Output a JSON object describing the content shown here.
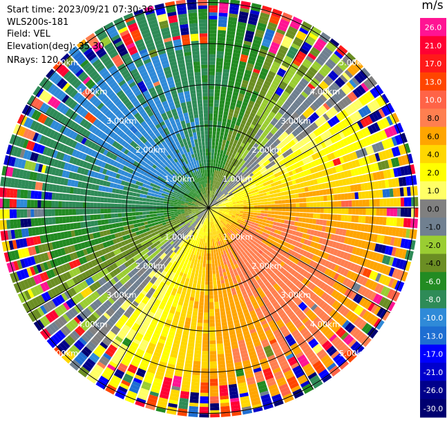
{
  "header": {
    "start_time": "Start time: 2023/09/21 07:30:36",
    "instrument": "WLS200s-181",
    "field": "Field: VEL",
    "elevation": "Elevation(deg): 35.30",
    "nrays": "NRays: 120"
  },
  "colorbar": {
    "unit": "m/s",
    "tick_labels": [
      "26.0",
      "21.0",
      "17.0",
      "13.0",
      "10.0",
      "8.0",
      "6.0",
      "4.0",
      "2.0",
      "1.0",
      "0.0",
      "-1.0",
      "-2.0",
      "-4.0",
      "-6.0",
      "-8.0",
      "-10.0",
      "-13.0",
      "-17.0",
      "-21.0",
      "-26.0",
      "-30.0"
    ],
    "bins": [
      {
        "from": -30,
        "to": -26,
        "color": "#000070"
      },
      {
        "from": -26,
        "to": -21,
        "color": "#00008b"
      },
      {
        "from": -21,
        "to": -17,
        "color": "#0000cd"
      },
      {
        "from": -17,
        "to": -13,
        "color": "#0000ff"
      },
      {
        "from": -13,
        "to": -10,
        "color": "#1e6ed2"
      },
      {
        "from": -10,
        "to": -8,
        "color": "#2f8ad8"
      },
      {
        "from": -8,
        "to": -6,
        "color": "#2e8b57"
      },
      {
        "from": -6,
        "to": -4,
        "color": "#228b22"
      },
      {
        "from": -4,
        "to": -2,
        "color": "#6b8e23"
      },
      {
        "from": -2,
        "to": -1,
        "color": "#9acd32"
      },
      {
        "from": -1,
        "to": 0,
        "color": "#708090"
      },
      {
        "from": 0,
        "to": 1,
        "color": "#808080"
      },
      {
        "from": 1,
        "to": 2,
        "color": "#ffff66"
      },
      {
        "from": 2,
        "to": 4,
        "color": "#ffff00"
      },
      {
        "from": 4,
        "to": 6,
        "color": "#ffd700"
      },
      {
        "from": 6,
        "to": 8,
        "color": "#ffa500"
      },
      {
        "from": 8,
        "to": 10,
        "color": "#ff7f50"
      },
      {
        "from": 10,
        "to": 13,
        "color": "#ff6347"
      },
      {
        "from": 13,
        "to": 17,
        "color": "#ff4500"
      },
      {
        "from": 17,
        "to": 21,
        "color": "#ff1a1a"
      },
      {
        "from": 21,
        "to": 26,
        "color": "#ff0033"
      },
      {
        "from": 26,
        "to": 30,
        "color": "#ff1493"
      }
    ]
  },
  "chart_data": {
    "type": "heatmap",
    "projection": "polar PPI",
    "range_rings_km": [
      1,
      2,
      3,
      4,
      5
    ],
    "ring_labels": [
      "1.00km",
      "2.00km",
      "3.00km",
      "4.00km",
      "5.00km"
    ],
    "spoke_count": 12,
    "n_rays": 120,
    "max_range_km": 5.1,
    "n_gates": 60,
    "value_range": [
      -30,
      30
    ],
    "velocity_pattern": {
      "description_free": true,
      "approach_azimuth_deg": 315,
      "recede_azimuth_deg": 135,
      "near_amplitude_ms": 9,
      "far_amplitude_ms": 7,
      "noise_onset_km": 4.0
    }
  }
}
